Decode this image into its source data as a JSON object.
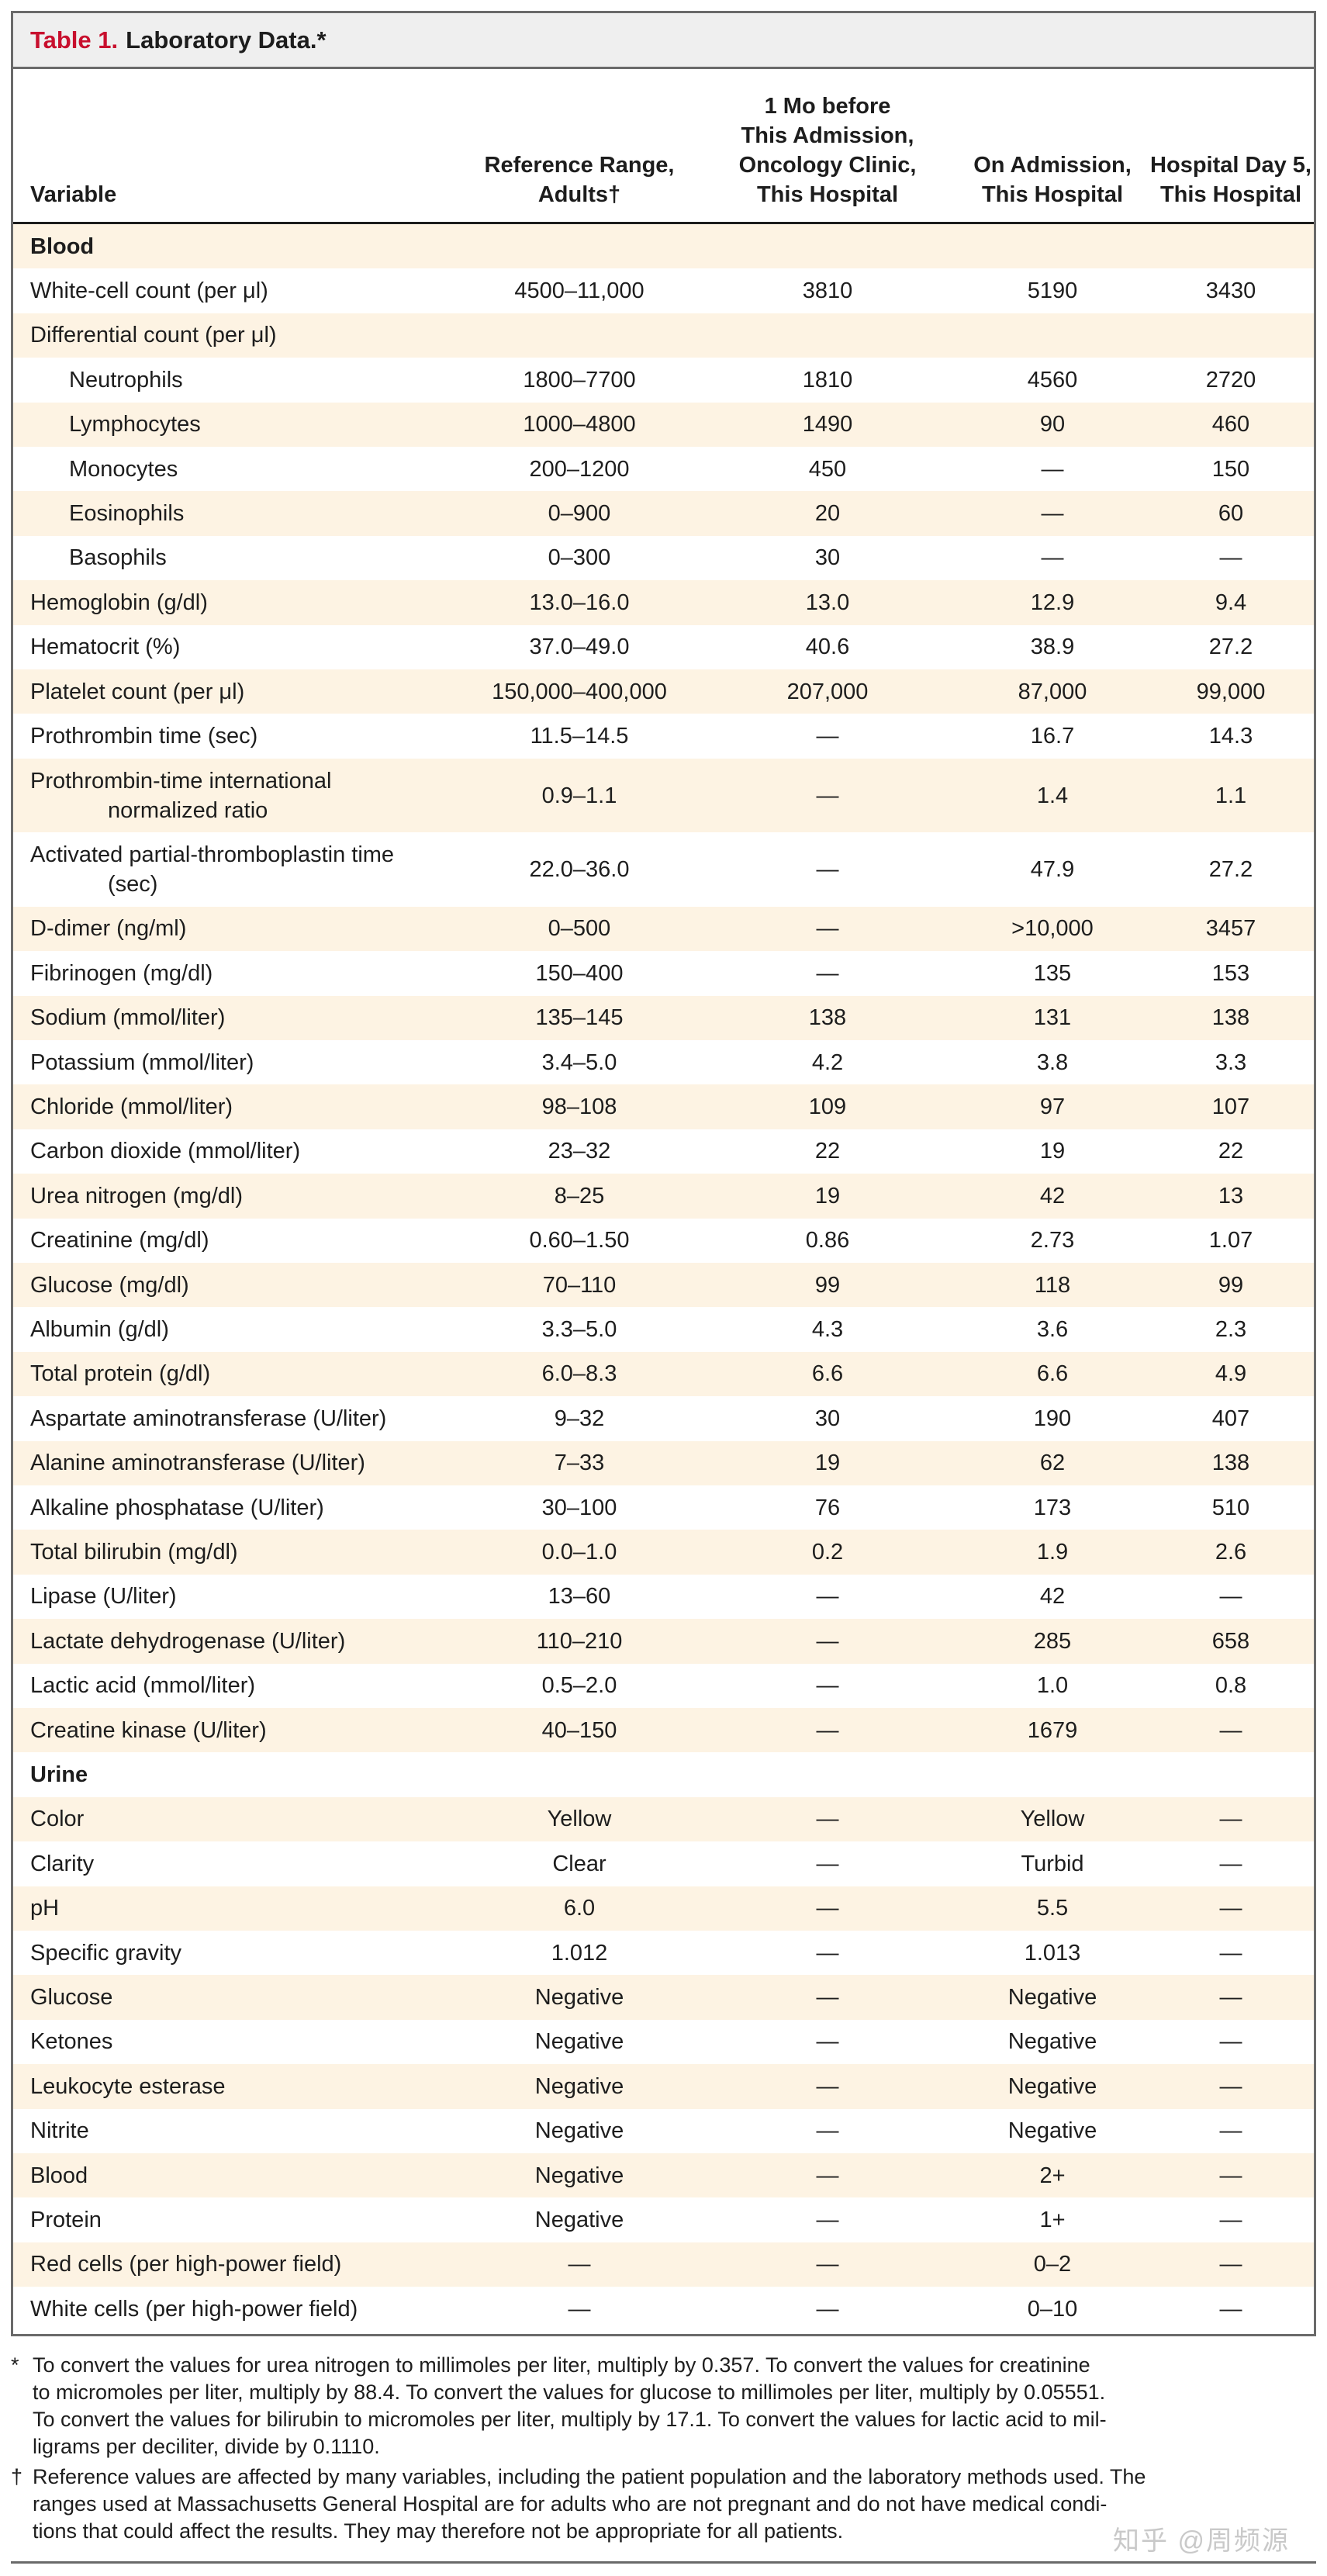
{
  "table": {
    "label": "Table 1.",
    "title": "Laboratory Data.*",
    "columns": [
      {
        "lines": [
          "Variable"
        ]
      },
      {
        "lines": [
          "Reference Range,",
          "Adults†"
        ]
      },
      {
        "lines": [
          "1 Mo before",
          "This Admission,",
          "Oncology Clinic,",
          "This Hospital"
        ]
      },
      {
        "lines": [
          "On Admission,",
          "This Hospital"
        ]
      },
      {
        "lines": [
          "Hospital Day 5,",
          "This Hospital"
        ]
      }
    ],
    "rows": [
      {
        "type": "section",
        "label": "Blood"
      },
      {
        "label": "White-cell count (per μl)",
        "ref": "4500–11,000",
        "m1": "3810",
        "adm": "5190",
        "d5": "3430"
      },
      {
        "label": "Differential count (per μl)",
        "ref": "",
        "m1": "",
        "adm": "",
        "d5": ""
      },
      {
        "label": "Neutrophils",
        "indent": true,
        "ref": "1800–7700",
        "m1": "1810",
        "adm": "4560",
        "d5": "2720"
      },
      {
        "label": "Lymphocytes",
        "indent": true,
        "ref": "1000–4800",
        "m1": "1490",
        "adm": "90",
        "d5": "460"
      },
      {
        "label": "Monocytes",
        "indent": true,
        "ref": "200–1200",
        "m1": "450",
        "adm": "—",
        "d5": "150"
      },
      {
        "label": "Eosinophils",
        "indent": true,
        "ref": "0–900",
        "m1": "20",
        "adm": "—",
        "d5": "60"
      },
      {
        "label": "Basophils",
        "indent": true,
        "ref": "0–300",
        "m1": "30",
        "adm": "—",
        "d5": "—"
      },
      {
        "label": "Hemoglobin (g/dl)",
        "ref": "13.0–16.0",
        "m1": "13.0",
        "adm": "12.9",
        "d5": "9.4"
      },
      {
        "label": "Hematocrit (%)",
        "ref": "37.0–49.0",
        "m1": "40.6",
        "adm": "38.9",
        "d5": "27.2"
      },
      {
        "label": "Platelet count (per μl)",
        "ref": "150,000–400,000",
        "m1": "207,000",
        "adm": "87,000",
        "d5": "99,000"
      },
      {
        "label": "Prothrombin time (sec)",
        "ref": "11.5–14.5",
        "m1": "—",
        "adm": "16.7",
        "d5": "14.3"
      },
      {
        "label": "Prothrombin-time international",
        "label2": "normalized ratio",
        "ref": "0.9–1.1",
        "m1": "—",
        "adm": "1.4",
        "d5": "1.1"
      },
      {
        "label": "Activated partial-thromboplastin time",
        "label2": "(sec)",
        "ref": "22.0–36.0",
        "m1": "—",
        "adm": "47.9",
        "d5": "27.2"
      },
      {
        "label": "D-dimer (ng/ml)",
        "ref": "0–500",
        "m1": "—",
        "adm": ">10,000",
        "d5": "3457"
      },
      {
        "label": "Fibrinogen (mg/dl)",
        "ref": "150–400",
        "m1": "—",
        "adm": "135",
        "d5": "153"
      },
      {
        "label": "Sodium (mmol/liter)",
        "ref": "135–145",
        "m1": "138",
        "adm": "131",
        "d5": "138"
      },
      {
        "label": "Potassium (mmol/liter)",
        "ref": "3.4–5.0",
        "m1": "4.2",
        "adm": "3.8",
        "d5": "3.3"
      },
      {
        "label": "Chloride (mmol/liter)",
        "ref": "98–108",
        "m1": "109",
        "adm": "97",
        "d5": "107"
      },
      {
        "label": "Carbon dioxide (mmol/liter)",
        "ref": "23–32",
        "m1": "22",
        "adm": "19",
        "d5": "22"
      },
      {
        "label": "Urea nitrogen (mg/dl)",
        "ref": "8–25",
        "m1": "19",
        "adm": "42",
        "d5": "13"
      },
      {
        "label": "Creatinine (mg/dl)",
        "ref": "0.60–1.50",
        "m1": "0.86",
        "adm": "2.73",
        "d5": "1.07"
      },
      {
        "label": "Glucose (mg/dl)",
        "ref": "70–110",
        "m1": "99",
        "adm": "118",
        "d5": "99"
      },
      {
        "label": "Albumin (g/dl)",
        "ref": "3.3–5.0",
        "m1": "4.3",
        "adm": "3.6",
        "d5": "2.3"
      },
      {
        "label": "Total protein (g/dl)",
        "ref": "6.0–8.3",
        "m1": "6.6",
        "adm": "6.6",
        "d5": "4.9"
      },
      {
        "label": "Aspartate aminotransferase (U/liter)",
        "ref": "9–32",
        "m1": "30",
        "adm": "190",
        "d5": "407"
      },
      {
        "label": "Alanine aminotransferase (U/liter)",
        "ref": "7–33",
        "m1": "19",
        "adm": "62",
        "d5": "138"
      },
      {
        "label": "Alkaline phosphatase (U/liter)",
        "ref": "30–100",
        "m1": "76",
        "adm": "173",
        "d5": "510"
      },
      {
        "label": "Total bilirubin (mg/dl)",
        "ref": "0.0–1.0",
        "m1": "0.2",
        "adm": "1.9",
        "d5": "2.6"
      },
      {
        "label": "Lipase (U/liter)",
        "ref": "13–60",
        "m1": "—",
        "adm": "42",
        "d5": "—"
      },
      {
        "label": "Lactate dehydrogenase (U/liter)",
        "ref": "110–210",
        "m1": "—",
        "adm": "285",
        "d5": "658"
      },
      {
        "label": "Lactic acid (mmol/liter)",
        "ref": "0.5–2.0",
        "m1": "—",
        "adm": "1.0",
        "d5": "0.8"
      },
      {
        "label": "Creatine kinase (U/liter)",
        "ref": "40–150",
        "m1": "—",
        "adm": "1679",
        "d5": "—"
      },
      {
        "type": "section",
        "label": "Urine"
      },
      {
        "label": "Color",
        "ref": "Yellow",
        "m1": "—",
        "adm": "Yellow",
        "d5": "—"
      },
      {
        "label": "Clarity",
        "ref": "Clear",
        "m1": "—",
        "adm": "Turbid",
        "d5": "—"
      },
      {
        "label": "pH",
        "ref": "6.0",
        "m1": "—",
        "adm": "5.5",
        "d5": "—"
      },
      {
        "label": "Specific gravity",
        "ref": "1.012",
        "m1": "—",
        "adm": "1.013",
        "d5": "—"
      },
      {
        "label": "Glucose",
        "ref": "Negative",
        "m1": "—",
        "adm": "Negative",
        "d5": "—"
      },
      {
        "label": "Ketones",
        "ref": "Negative",
        "m1": "—",
        "adm": "Negative",
        "d5": "—"
      },
      {
        "label": "Leukocyte esterase",
        "ref": "Negative",
        "m1": "—",
        "adm": "Negative",
        "d5": "—"
      },
      {
        "label": "Nitrite",
        "ref": "Negative",
        "m1": "—",
        "adm": "Negative",
        "d5": "—"
      },
      {
        "label": "Blood",
        "ref": "Negative",
        "m1": "—",
        "adm": "2+",
        "d5": "—"
      },
      {
        "label": "Protein",
        "ref": "Negative",
        "m1": "—",
        "adm": "1+",
        "d5": "—"
      },
      {
        "label": "Red cells (per high-power field)",
        "ref": "—",
        "m1": "—",
        "adm": "0–2",
        "d5": "—"
      },
      {
        "label": "White cells (per high-power field)",
        "ref": "—",
        "m1": "—",
        "adm": "0–10",
        "d5": "—"
      }
    ]
  },
  "footnotes": [
    {
      "mark": "*",
      "lines": [
        "To convert the values for urea nitrogen to millimoles per liter, multiply by 0.357. To convert the values for creatinine",
        "to micromoles per liter, multiply by 88.4. To convert the values for glucose to millimoles per liter, multiply by 0.05551.",
        "To convert the values for bilirubin to micromoles per liter, multiply by 17.1. To convert the values for lactic acid to mil-",
        "ligrams per deciliter, divide by 0.1110."
      ]
    },
    {
      "mark": "†",
      "lines": [
        "Reference values are affected by many variables, including the patient population and the laboratory methods used. The",
        "ranges used at Massachusetts General Hospital are for adults who are not pregnant and do not have medical condi-",
        "tions that could affect the results. They may therefore not be appropriate for all patients."
      ]
    }
  ],
  "watermark": "知乎 @周频源"
}
